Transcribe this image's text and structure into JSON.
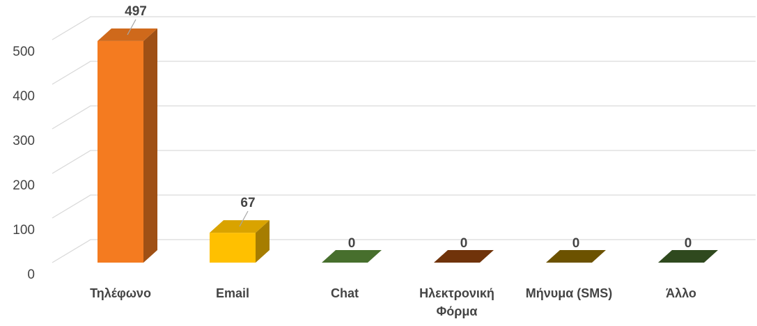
{
  "chart_data": {
    "type": "bar3d",
    "categories": [
      "Τηλέφωνο",
      "Email",
      "Chat",
      "Ηλεκτρονική Φόρμα",
      "Μήνυμα (SMS)",
      "Άλλο"
    ],
    "values": [
      497,
      67,
      0,
      0,
      0,
      0
    ],
    "colors": [
      "#f47b20",
      "#ffc000",
      "#548235",
      "#843c0c",
      "#7f6000",
      "#375623"
    ],
    "ylim": [
      0,
      500
    ],
    "yticks": [
      0,
      100,
      200,
      300,
      400,
      500
    ],
    "grid": true
  }
}
